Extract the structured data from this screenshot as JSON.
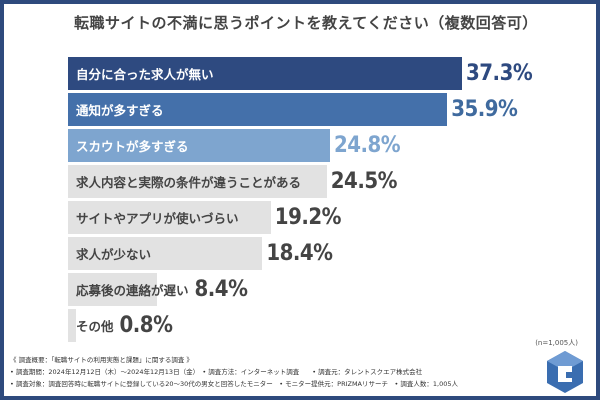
{
  "chart_data": {
    "type": "bar",
    "orientation": "horizontal",
    "title": "転職サイトの不満に思うポイントを教えてください（複数回答可）",
    "categories": [
      "自分に合った求人が無い",
      "通知が多すぎる",
      "スカウトが多すぎる",
      "求人内容と実際の条件が違うことがある",
      "サイトやアプリが使いづらい",
      "求人が少ない",
      "応募後の連絡が遅い",
      "その他"
    ],
    "values": [
      37.3,
      35.9,
      24.8,
      24.5,
      19.2,
      18.4,
      8.4,
      0.8
    ],
    "value_labels": [
      "37.3%",
      "35.9%",
      "24.8%",
      "24.5%",
      "19.2%",
      "18.4%",
      "8.4%",
      "0.8%"
    ],
    "unit": "%",
    "xlim": [
      0,
      40
    ],
    "grid": false,
    "bar_colors": [
      "#2e4a80",
      "#4470aa",
      "#7ea5cf",
      "#e2e2e2",
      "#e2e2e2",
      "#e2e2e2",
      "#e2e2e2",
      "#e2e2e2"
    ],
    "label_colors": [
      "#ffffff",
      "#ffffff",
      "#ffffff",
      "#444444",
      "#444444",
      "#444444",
      "#444444",
      "#444444"
    ],
    "value_colors": [
      "#2e4a80",
      "#3f6a9e",
      "#7ea5cf",
      "#444444",
      "#444444",
      "#444444",
      "#444444",
      "#444444"
    ]
  },
  "sample_size": "(n=1,005人)",
  "notes": [
    "《 調査概要：「転職サイトの利用実態と課題」に関する調査 》",
    "• 調査期間：2024年12月12日（木）～2024年12月13日（金）　• 調査方法：インターネット調査　　• 調査元：タレントスクエア株式会社",
    "• 調査対象：調査回答時に転職サイトに登録している20～30代の男女と回答したモニター　• モニター提供元：PRIZMAリサーチ　• 調査人数：1,005人"
  ],
  "colors": {
    "frame": "#2e4a7d",
    "logo": "#3a6db0"
  }
}
